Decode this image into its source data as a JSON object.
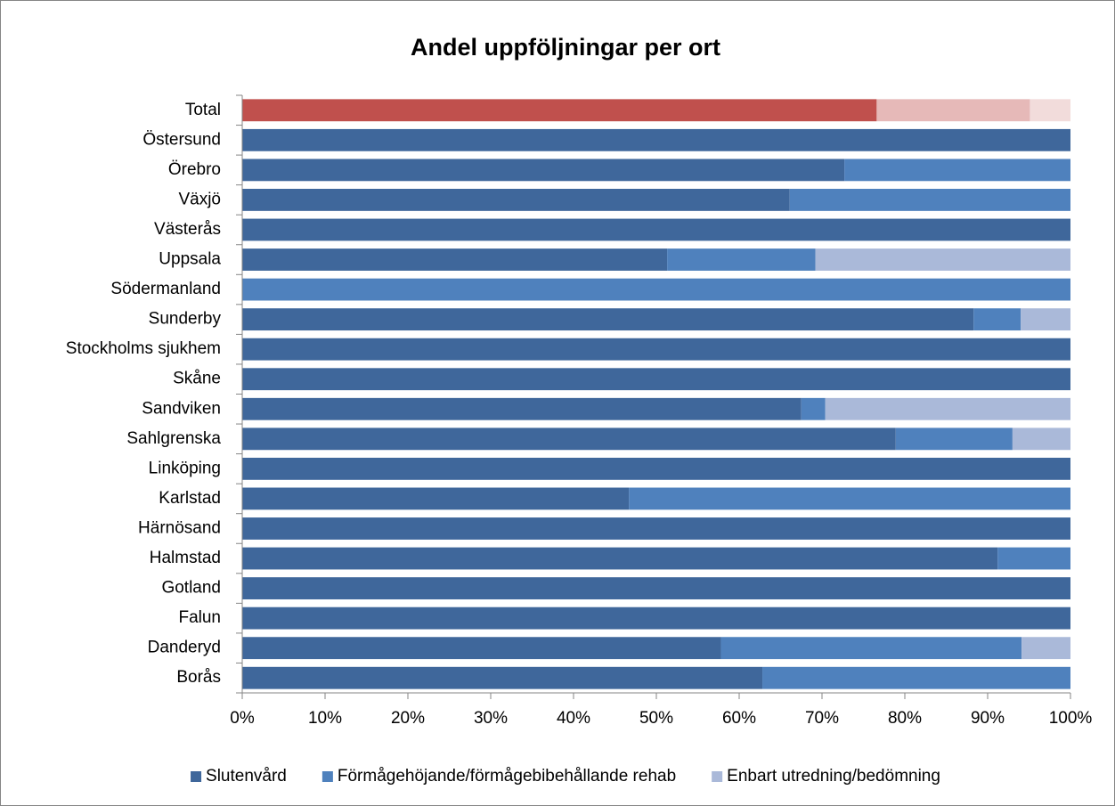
{
  "chart_data": {
    "type": "stacked_barh",
    "title": "Andel uppföljningar per ort",
    "categories": [
      "Total",
      "Östersund",
      "Örebro",
      "Växjö",
      "Västerås",
      "Uppsala",
      "Södermanland",
      "Sunderby",
      "Stockholms sjukhem",
      "Skåne",
      "Sandviken",
      "Sahlgrenska",
      "Linköping",
      "Karlstad",
      "Härnösand",
      "Halmstad",
      "Gotland",
      "Falun",
      "Danderyd",
      "Borås"
    ],
    "series": [
      {
        "name": "Slutenvård",
        "color": "#3f679b",
        "highlight_color": "#c0504d",
        "values": [
          76.6,
          100,
          72.7,
          66.1,
          100,
          51.3,
          0,
          88.3,
          100,
          100,
          67.5,
          78.9,
          100,
          46.7,
          100,
          91.2,
          100,
          100,
          57.8,
          62.8
        ]
      },
      {
        "name": "Förmågehöjande/förmågebibehållande rehab",
        "color": "#4f81bd",
        "highlight_color": "#e6b9b8",
        "values": [
          18.5,
          0,
          27.3,
          33.9,
          0,
          17.9,
          100,
          5.7,
          0,
          0,
          2.9,
          14.1,
          0,
          53.3,
          0,
          8.8,
          0,
          0,
          36.3,
          37.2
        ]
      },
      {
        "name": "Enbart utredning/bedömning",
        "color": "#aab9d9",
        "highlight_color": "#f2dcdb",
        "values": [
          4.9,
          0,
          0,
          0,
          0,
          30.8,
          0,
          6.0,
          0,
          0,
          29.6,
          7.0,
          0,
          0,
          0,
          0,
          0,
          0,
          5.9,
          0
        ]
      }
    ],
    "highlight_index": 0,
    "xlim": [
      0,
      100
    ],
    "xticks": [
      {
        "value": 0,
        "label": "0%"
      },
      {
        "value": 10,
        "label": "10%"
      },
      {
        "value": 20,
        "label": "20%"
      },
      {
        "value": 30,
        "label": "30%"
      },
      {
        "value": 40,
        "label": "40%"
      },
      {
        "value": 50,
        "label": "50%"
      },
      {
        "value": 60,
        "label": "60%"
      },
      {
        "value": 70,
        "label": "70%"
      },
      {
        "value": 80,
        "label": "80%"
      },
      {
        "value": 90,
        "label": "90%"
      },
      {
        "value": 100,
        "label": "100%"
      }
    ],
    "legend": "bottom"
  }
}
